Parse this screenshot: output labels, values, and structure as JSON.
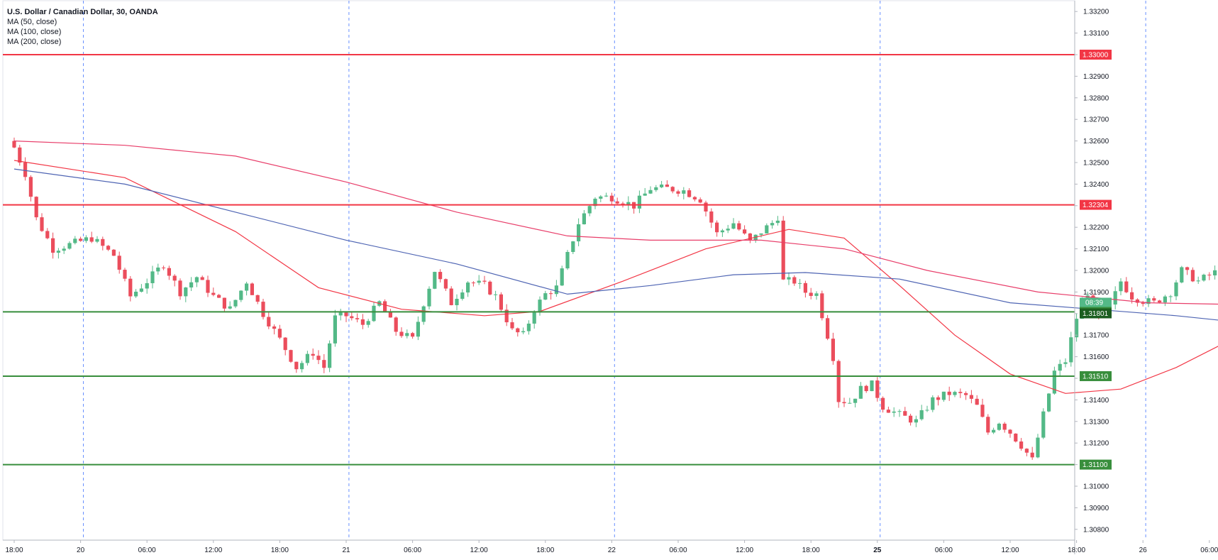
{
  "chart_data": {
    "type": "candlestick",
    "title": "U.S. Dollar / Canadian Dollar, 30, OANDA",
    "indicators": [
      "MA (50, close)",
      "MA (100, close)",
      "MA (200, close)"
    ],
    "ylim": [
      1.3075,
      1.3325
    ],
    "y_ticks": [
      "1.30800",
      "1.30900",
      "1.31000",
      "1.31100",
      "1.31200",
      "1.31300",
      "1.31400",
      "1.31500",
      "1.31600",
      "1.31700",
      "1.31800",
      "1.31900",
      "1.32000",
      "1.32100",
      "1.32200",
      "1.32300",
      "1.32400",
      "1.32500",
      "1.32600",
      "1.32700",
      "1.32800",
      "1.32900",
      "1.33000",
      "1.33100",
      "1.33200"
    ],
    "x_ticks": [
      {
        "i": 0,
        "label": "18:00",
        "bold": false
      },
      {
        "i": 12,
        "label": "20",
        "bold": false
      },
      {
        "i": 24,
        "label": "06:00",
        "bold": false
      },
      {
        "i": 36,
        "label": "12:00",
        "bold": false
      },
      {
        "i": 48,
        "label": "18:00",
        "bold": false
      },
      {
        "i": 60,
        "label": "21",
        "bold": false
      },
      {
        "i": 72,
        "label": "06:00",
        "bold": false
      },
      {
        "i": 84,
        "label": "12:00",
        "bold": false
      },
      {
        "i": 96,
        "label": "18:00",
        "bold": false
      },
      {
        "i": 108,
        "label": "22",
        "bold": false
      },
      {
        "i": 120,
        "label": "06:00",
        "bold": false
      },
      {
        "i": 132,
        "label": "12:00",
        "bold": false
      },
      {
        "i": 144,
        "label": "18:00",
        "bold": false
      },
      {
        "i": 156,
        "label": "25",
        "bold": true
      },
      {
        "i": 168,
        "label": "06:00",
        "bold": false
      },
      {
        "i": 180,
        "label": "12:00",
        "bold": false
      },
      {
        "i": 192,
        "label": "18:00",
        "bold": false
      },
      {
        "i": 204,
        "label": "26",
        "bold": false
      },
      {
        "i": 216,
        "label": "06:00",
        "bold": false
      },
      {
        "i": 228,
        "label": "12:00",
        "bold": false
      },
      {
        "i": 240,
        "label": "18:00",
        "bold": false
      }
    ],
    "session_breaks_i": [
      12.5,
      60.5,
      108.5,
      156.5,
      204.5
    ],
    "horizontal_levels": [
      {
        "value": 1.33,
        "label": "1.33000",
        "color": "#f23645"
      },
      {
        "value": 1.32304,
        "label": "1.32304",
        "color": "#f23645"
      },
      {
        "value": 1.31808,
        "label": "1.31808",
        "color": "#388e3c"
      },
      {
        "value": 1.3151,
        "label": "1.31510",
        "color": "#388e3c"
      },
      {
        "value": 1.311,
        "label": "1.31100",
        "color": "#388e3c"
      }
    ],
    "current_price": {
      "value": 1.31801,
      "label": "1.31801",
      "countdown": "08:39"
    },
    "moving_averages": [
      {
        "name": "MA (50, close)",
        "color": "#f23645",
        "points": [
          [
            0,
            1.3251
          ],
          [
            20,
            1.3243
          ],
          [
            40,
            1.3218
          ],
          [
            55,
            1.3192
          ],
          [
            70,
            1.3182
          ],
          [
            85,
            1.3179
          ],
          [
            95,
            1.3181
          ],
          [
            110,
            1.3195
          ],
          [
            125,
            1.321
          ],
          [
            140,
            1.3219
          ],
          [
            150,
            1.3215
          ],
          [
            160,
            1.3193
          ],
          [
            170,
            1.317
          ],
          [
            180,
            1.3152
          ],
          [
            190,
            1.3143
          ],
          [
            200,
            1.3145
          ],
          [
            210,
            1.3155
          ],
          [
            220,
            1.3168
          ],
          [
            230,
            1.3185
          ],
          [
            238,
            1.3199
          ],
          [
            241,
            1.3198
          ]
        ]
      },
      {
        "name": "MA (100, close)",
        "color": "#4e64b3",
        "points": [
          [
            0,
            1.3247
          ],
          [
            20,
            1.324
          ],
          [
            40,
            1.3227
          ],
          [
            60,
            1.3214
          ],
          [
            80,
            1.3203
          ],
          [
            100,
            1.3189
          ],
          [
            115,
            1.3193
          ],
          [
            130,
            1.3198
          ],
          [
            143,
            1.3199
          ],
          [
            160,
            1.3196
          ],
          [
            180,
            1.3185
          ],
          [
            195,
            1.3182
          ],
          [
            210,
            1.3179
          ],
          [
            225,
            1.3175
          ],
          [
            235,
            1.3173
          ],
          [
            241,
            1.3173
          ]
        ]
      },
      {
        "name": "MA (200, close)",
        "color": "#e83e6a",
        "points": [
          [
            0,
            1.326
          ],
          [
            20,
            1.3258
          ],
          [
            40,
            1.3253
          ],
          [
            60,
            1.3241
          ],
          [
            80,
            1.3227
          ],
          [
            100,
            1.3216
          ],
          [
            115,
            1.3214
          ],
          [
            135,
            1.3214
          ],
          [
            150,
            1.321
          ],
          [
            165,
            1.32
          ],
          [
            185,
            1.319
          ],
          [
            205,
            1.3185
          ],
          [
            225,
            1.3184
          ],
          [
            241,
            1.3185
          ]
        ]
      }
    ],
    "anchors": [
      [
        0,
        1.3257
      ],
      [
        2,
        1.3245
      ],
      [
        4,
        1.3224
      ],
      [
        7,
        1.321
      ],
      [
        10,
        1.3212
      ],
      [
        14,
        1.3215
      ],
      [
        18,
        1.3207
      ],
      [
        21,
        1.3188
      ],
      [
        24,
        1.3195
      ],
      [
        27,
        1.3203
      ],
      [
        30,
        1.319
      ],
      [
        33,
        1.3197
      ],
      [
        36,
        1.3188
      ],
      [
        39,
        1.3182
      ],
      [
        42,
        1.3195
      ],
      [
        45,
        1.318
      ],
      [
        48,
        1.3168
      ],
      [
        51,
        1.3155
      ],
      [
        54,
        1.3162
      ],
      [
        56,
        1.3155
      ],
      [
        58,
        1.3178
      ],
      [
        60,
        1.3179
      ],
      [
        63,
        1.3175
      ],
      [
        66,
        1.3185
      ],
      [
        69,
        1.3172
      ],
      [
        72,
        1.3168
      ],
      [
        74,
        1.3185
      ],
      [
        76,
        1.32
      ],
      [
        79,
        1.3185
      ],
      [
        82,
        1.3195
      ],
      [
        85,
        1.3193
      ],
      [
        87,
        1.3188
      ],
      [
        90,
        1.3172
      ],
      [
        92,
        1.317
      ],
      [
        94,
        1.3182
      ],
      [
        96,
        1.3189
      ],
      [
        98,
        1.3192
      ],
      [
        100,
        1.3207
      ],
      [
        102,
        1.3222
      ],
      [
        105,
        1.3234
      ],
      [
        108,
        1.3234
      ],
      [
        110,
        1.3232
      ],
      [
        112,
        1.323
      ],
      [
        115,
        1.3238
      ],
      [
        118,
        1.3238
      ],
      [
        121,
        1.3237
      ],
      [
        124,
        1.3233
      ],
      [
        127,
        1.3217
      ],
      [
        130,
        1.3222
      ],
      [
        133,
        1.3213
      ],
      [
        135,
        1.3218
      ],
      [
        137,
        1.3222
      ],
      [
        138,
        1.3225
      ],
      [
        139,
        1.3195
      ],
      [
        141,
        1.3195
      ],
      [
        143,
        1.319
      ],
      [
        145,
        1.3189
      ],
      [
        147,
        1.317
      ],
      [
        148,
        1.316
      ],
      [
        149,
        1.314
      ],
      [
        151,
        1.3139
      ],
      [
        153,
        1.3145
      ],
      [
        155,
        1.3147
      ],
      [
        157,
        1.3137
      ],
      [
        160,
        1.3133
      ],
      [
        163,
        1.313
      ],
      [
        166,
        1.314
      ],
      [
        169,
        1.3143
      ],
      [
        172,
        1.3142
      ],
      [
        174,
        1.3137
      ],
      [
        176,
        1.3125
      ],
      [
        178,
        1.313
      ],
      [
        180,
        1.3125
      ],
      [
        182,
        1.3119
      ],
      [
        184,
        1.3112
      ],
      [
        186,
        1.3133
      ],
      [
        188,
        1.3153
      ],
      [
        190,
        1.3158
      ],
      [
        192,
        1.3178
      ],
      [
        194,
        1.319
      ],
      [
        196,
        1.3178
      ],
      [
        198,
        1.3183
      ],
      [
        200,
        1.3195
      ],
      [
        202,
        1.3188
      ],
      [
        204,
        1.3186
      ],
      [
        206,
        1.3185
      ],
      [
        209,
        1.319
      ],
      [
        211,
        1.32
      ],
      [
        214,
        1.3195
      ],
      [
        217,
        1.3199
      ],
      [
        219,
        1.3197
      ],
      [
        221,
        1.321
      ],
      [
        223,
        1.3214
      ],
      [
        225,
        1.3208
      ],
      [
        227,
        1.3216
      ],
      [
        229,
        1.3222
      ],
      [
        231,
        1.3226
      ],
      [
        233,
        1.3224
      ],
      [
        235,
        1.3218
      ],
      [
        236,
        1.32
      ],
      [
        237,
        1.319
      ],
      [
        239,
        1.3175
      ],
      [
        241,
        1.3181
      ]
    ]
  }
}
